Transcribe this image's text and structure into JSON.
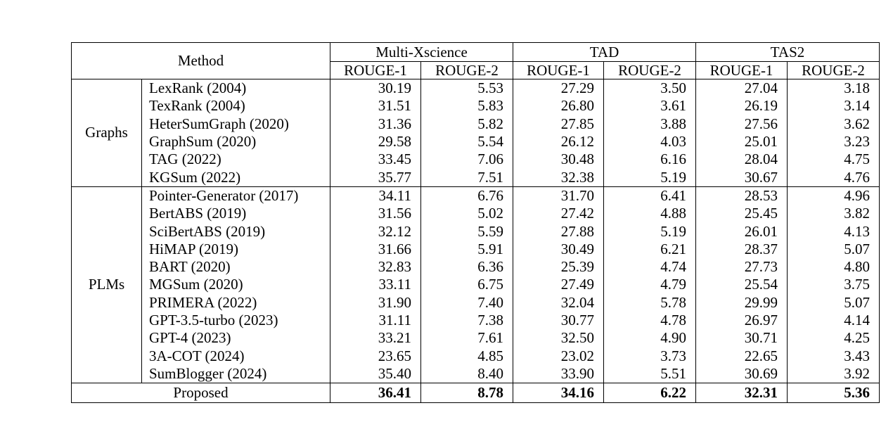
{
  "header": {
    "method": "Method",
    "datasets": [
      "Multi-Xscience",
      "TAD",
      "TAS2"
    ],
    "metrics": [
      "ROUGE-1",
      "ROUGE-2",
      "ROUGE-1",
      "ROUGE-2",
      "ROUGE-1",
      "ROUGE-2"
    ]
  },
  "groups": [
    {
      "name": "Graphs",
      "rows": [
        {
          "method": "LexRank (2004)",
          "values": [
            "30.19",
            "5.53",
            "27.29",
            "3.50",
            "27.04",
            "3.18"
          ]
        },
        {
          "method": "TexRank (2004)",
          "values": [
            "31.51",
            "5.83",
            "26.80",
            "3.61",
            "26.19",
            "3.14"
          ]
        },
        {
          "method": "HeterSumGraph (2020)",
          "values": [
            "31.36",
            "5.82",
            "27.85",
            "3.88",
            "27.56",
            "3.62"
          ]
        },
        {
          "method": "GraphSum (2020)",
          "values": [
            "29.58",
            "5.54",
            "26.12",
            "4.03",
            "25.01",
            "3.23"
          ]
        },
        {
          "method": "TAG (2022)",
          "values": [
            "33.45",
            "7.06",
            "30.48",
            "6.16",
            "28.04",
            "4.75"
          ]
        },
        {
          "method": "KGSum (2022)",
          "values": [
            "35.77",
            "7.51",
            "32.38",
            "5.19",
            "30.67",
            "4.76"
          ]
        }
      ]
    },
    {
      "name": "PLMs",
      "rows": [
        {
          "method": "Pointer-Generator (2017)",
          "values": [
            "34.11",
            "6.76",
            "31.70",
            "6.41",
            "28.53",
            "4.96"
          ]
        },
        {
          "method": "BertABS (2019)",
          "values": [
            "31.56",
            "5.02",
            "27.42",
            "4.88",
            "25.45",
            "3.82"
          ]
        },
        {
          "method": "SciBertABS (2019)",
          "values": [
            "32.12",
            "5.59",
            "27.88",
            "5.19",
            "26.01",
            "4.13"
          ]
        },
        {
          "method": "HiMAP (2019)",
          "values": [
            "31.66",
            "5.91",
            "30.49",
            "6.21",
            "28.37",
            "5.07"
          ]
        },
        {
          "method": "BART (2020)",
          "values": [
            "32.83",
            "6.36",
            "25.39",
            "4.74",
            "27.73",
            "4.80"
          ]
        },
        {
          "method": "MGSum (2020)",
          "values": [
            "33.11",
            "6.75",
            "27.49",
            "4.79",
            "25.54",
            "3.75"
          ]
        },
        {
          "method": "PRIMERA (2022)",
          "values": [
            "31.90",
            "7.40",
            "32.04",
            "5.78",
            "29.99",
            "5.07"
          ]
        },
        {
          "method": "GPT-3.5-turbo (2023)",
          "values": [
            "31.11",
            "7.38",
            "30.77",
            "4.78",
            "26.97",
            "4.14"
          ]
        },
        {
          "method": "GPT-4 (2023)",
          "values": [
            "33.21",
            "7.61",
            "32.50",
            "4.90",
            "30.71",
            "4.25"
          ]
        },
        {
          "method": "3A-COT (2024)",
          "values": [
            "23.65",
            "4.85",
            "23.02",
            "3.73",
            "22.65",
            "3.43"
          ]
        },
        {
          "method": "SumBlogger (2024)",
          "values": [
            "35.40",
            "8.40",
            "33.90",
            "5.51",
            "30.69",
            "3.92"
          ]
        }
      ]
    }
  ],
  "proposed": {
    "method": "Proposed",
    "values": [
      "36.41",
      "8.78",
      "34.16",
      "6.22",
      "32.31",
      "5.36"
    ]
  }
}
